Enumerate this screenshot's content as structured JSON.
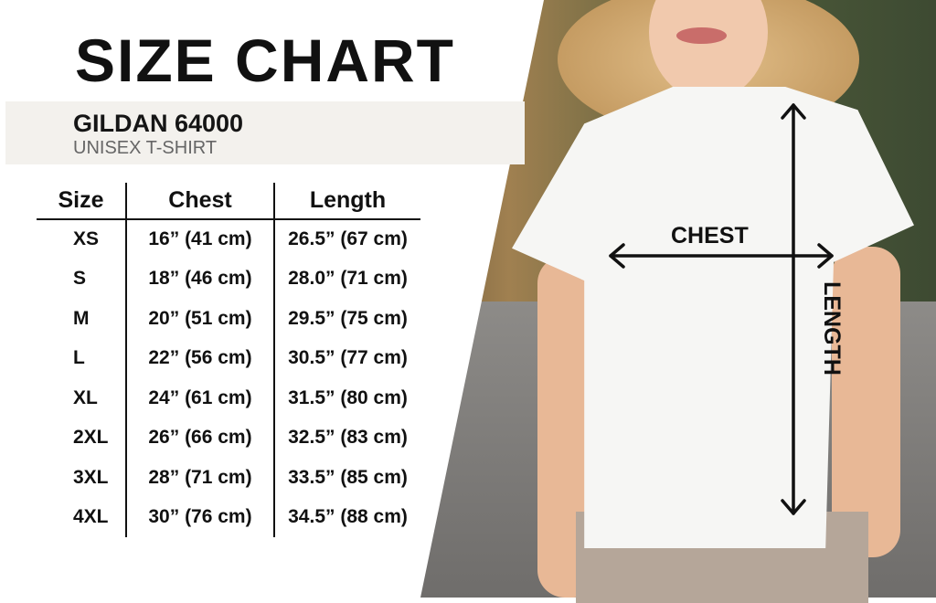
{
  "title": "SIZE CHART",
  "product": {
    "brand": "GILDAN 64000",
    "type": "UNISEX T-SHIRT"
  },
  "table": {
    "headers": [
      "Size",
      "Chest",
      "Length"
    ],
    "rows": [
      [
        "XS",
        "16” (41 cm)",
        "26.5” (67 cm)"
      ],
      [
        "S",
        "18” (46 cm)",
        "28.0” (71 cm)"
      ],
      [
        "M",
        "20” (51 cm)",
        "29.5” (75 cm)"
      ],
      [
        "L",
        "22” (56 cm)",
        "30.5” (77 cm)"
      ],
      [
        "XL",
        "24” (61 cm)",
        "31.5” (80 cm)"
      ],
      [
        "2XL",
        "26” (66 cm)",
        "32.5” (83 cm)"
      ],
      [
        "3XL",
        "28” (71 cm)",
        "33.5” (85 cm)"
      ],
      [
        "4XL",
        "30” (76 cm)",
        "34.5” (88 cm)"
      ]
    ]
  },
  "measurements": {
    "chest": "CHEST",
    "length": "LENGTH"
  }
}
